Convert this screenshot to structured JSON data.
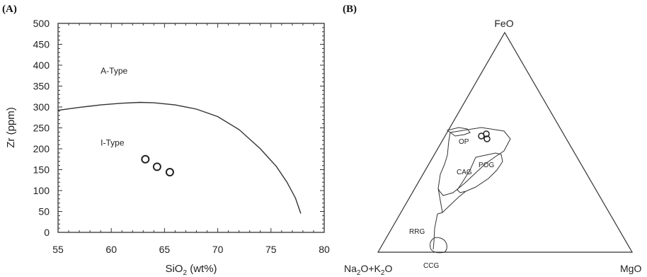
{
  "panels": {
    "a_label": "(A)",
    "b_label": "(B)"
  },
  "chart_data": [
    {
      "type": "scatter",
      "panel": "(A)",
      "xlabel_main": "SiO",
      "xlabel_sub": "2",
      "xlabel_unit": " (wt%)",
      "ylabel": "Zr (ppm)",
      "xlim": [
        55,
        80
      ],
      "ylim": [
        0,
        500
      ],
      "xticks": [
        55,
        60,
        65,
        70,
        75,
        80
      ],
      "yticks": [
        0,
        50,
        100,
        150,
        200,
        250,
        300,
        350,
        400,
        450,
        500
      ],
      "points": [
        {
          "x": 63.2,
          "y": 175
        },
        {
          "x": 64.3,
          "y": 157
        },
        {
          "x": 65.5,
          "y": 144
        }
      ],
      "boundary_curve": [
        [
          55.0,
          292
        ],
        [
          57.0,
          299
        ],
        [
          59.0,
          305
        ],
        [
          61.0,
          309
        ],
        [
          62.7,
          311
        ],
        [
          64.0,
          310
        ],
        [
          66.0,
          305
        ],
        [
          68.0,
          295
        ],
        [
          70.0,
          277
        ],
        [
          72.0,
          246
        ],
        [
          74.0,
          200
        ],
        [
          75.5,
          158
        ],
        [
          76.5,
          120
        ],
        [
          77.3,
          82
        ],
        [
          77.8,
          45
        ]
      ],
      "field_labels": [
        {
          "text": "A-Type",
          "x": 59.0,
          "y": 380
        },
        {
          "text": "I-Type",
          "x": 59.0,
          "y": 208
        }
      ],
      "grid": false,
      "legend": "none"
    },
    {
      "type": "ternary",
      "panel": "(B)",
      "vertices": {
        "top": "FeO",
        "left_main": "Na",
        "left_sub1": "2",
        "left_mid": "O+K",
        "left_sub2": "2",
        "left_end": "O",
        "right": "MgO"
      },
      "field_labels": [
        "OP",
        "CAG",
        "POG",
        "RRG",
        "CCG"
      ],
      "points": [
        {
          "FeO": 0.48,
          "MgO": 0.27,
          "Na2O+K2O": 0.25
        },
        {
          "FeO": 0.49,
          "MgO": 0.28,
          "Na2O+K2O": 0.23
        },
        {
          "FeO": 0.47,
          "MgO": 0.29,
          "Na2O+K2O": 0.24
        }
      ]
    }
  ]
}
